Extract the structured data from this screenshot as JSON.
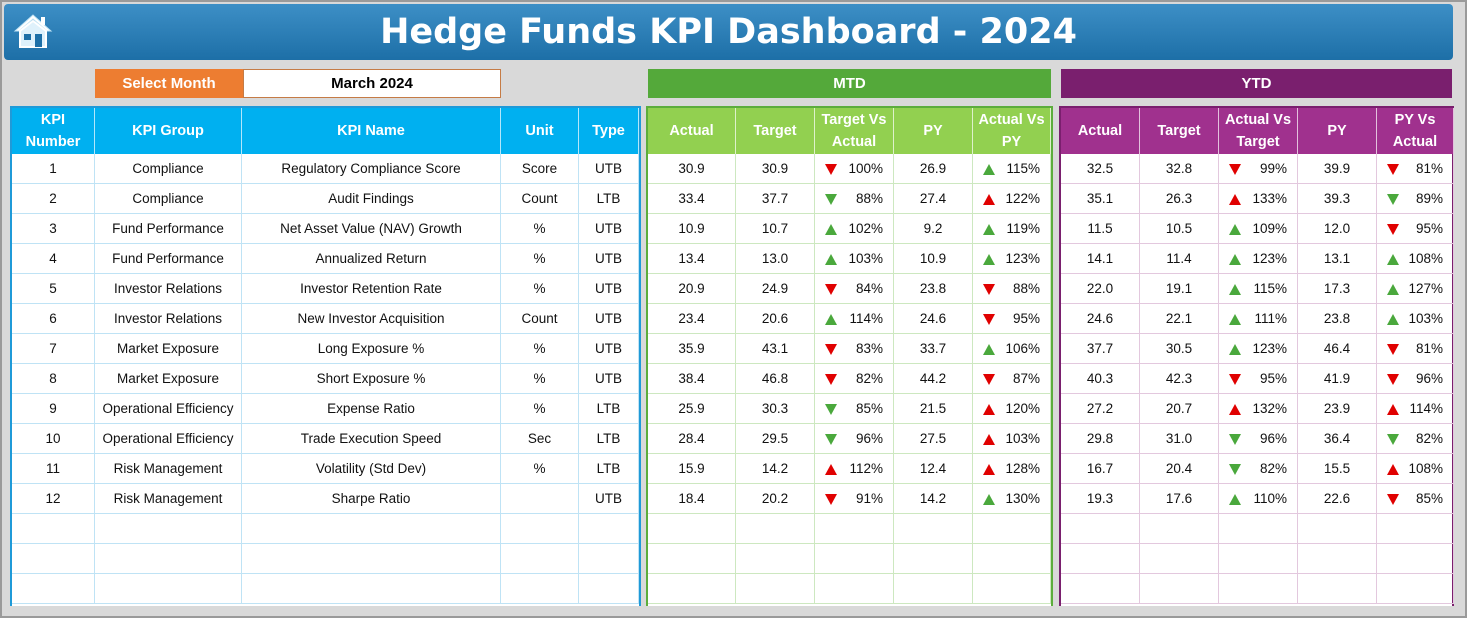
{
  "header": {
    "title": "Hedge Funds KPI Dashboard - 2024",
    "home_icon": "home-icon"
  },
  "selector": {
    "label": "Select Month",
    "value": "March 2024"
  },
  "sections": {
    "mtd": "MTD",
    "ytd": "YTD"
  },
  "colors": {
    "title_bg": "#2a7db7",
    "select_label": "#ed7d31",
    "left_header": "#00b0f0",
    "mtd_header": "#92d050",
    "mtd_bar": "#54a93a",
    "ytd_header": "#a0318e",
    "ytd_bar": "#7a1f6e",
    "arrow_up": "#4aa83c",
    "arrow_down": "#e00000"
  },
  "left_headers": [
    "KPI Number",
    "KPI Group",
    "KPI Name",
    "Unit",
    "Type"
  ],
  "mtd_headers": [
    "Actual",
    "Target",
    "Target Vs Actual",
    "PY",
    "Actual Vs PY"
  ],
  "ytd_headers": [
    "Actual",
    "Target",
    "Actual Vs Target",
    "PY",
    "PY Vs Actual"
  ],
  "rows": [
    {
      "num": "1",
      "group": "Compliance",
      "name": "Regulatory Compliance Score",
      "unit": "Score",
      "type": "UTB",
      "mtd": {
        "actual": "30.9",
        "target": "30.9",
        "tva": "100%",
        "tva_dir": "down",
        "py": "26.9",
        "avp": "115%",
        "avp_dir": "up"
      },
      "ytd": {
        "actual": "32.5",
        "target": "32.8",
        "avt": "99%",
        "avt_dir": "down",
        "py": "39.9",
        "pva": "81%",
        "pva_dir": "down"
      }
    },
    {
      "num": "2",
      "group": "Compliance",
      "name": "Audit Findings",
      "unit": "Count",
      "type": "LTB",
      "mtd": {
        "actual": "33.4",
        "target": "37.7",
        "tva": "88%",
        "tva_dir": "down-green",
        "py": "27.4",
        "avp": "122%",
        "avp_dir": "up-red"
      },
      "ytd": {
        "actual": "35.1",
        "target": "26.3",
        "avt": "133%",
        "avt_dir": "up-red",
        "py": "39.3",
        "pva": "89%",
        "pva_dir": "down-green"
      }
    },
    {
      "num": "3",
      "group": "Fund Performance",
      "name": "Net Asset Value (NAV) Growth",
      "unit": "%",
      "type": "UTB",
      "mtd": {
        "actual": "10.9",
        "target": "10.7",
        "tva": "102%",
        "tva_dir": "up",
        "py": "9.2",
        "avp": "119%",
        "avp_dir": "up"
      },
      "ytd": {
        "actual": "11.5",
        "target": "10.5",
        "avt": "109%",
        "avt_dir": "up",
        "py": "12.0",
        "pva": "95%",
        "pva_dir": "down"
      }
    },
    {
      "num": "4",
      "group": "Fund Performance",
      "name": "Annualized Return",
      "unit": "%",
      "type": "UTB",
      "mtd": {
        "actual": "13.4",
        "target": "13.0",
        "tva": "103%",
        "tva_dir": "up",
        "py": "10.9",
        "avp": "123%",
        "avp_dir": "up"
      },
      "ytd": {
        "actual": "14.1",
        "target": "11.4",
        "avt": "123%",
        "avt_dir": "up",
        "py": "13.1",
        "pva": "108%",
        "pva_dir": "up"
      }
    },
    {
      "num": "5",
      "group": "Investor Relations",
      "name": "Investor Retention Rate",
      "unit": "%",
      "type": "UTB",
      "mtd": {
        "actual": "20.9",
        "target": "24.9",
        "tva": "84%",
        "tva_dir": "down",
        "py": "23.8",
        "avp": "88%",
        "avp_dir": "down"
      },
      "ytd": {
        "actual": "22.0",
        "target": "19.1",
        "avt": "115%",
        "avt_dir": "up",
        "py": "17.3",
        "pva": "127%",
        "pva_dir": "up"
      }
    },
    {
      "num": "6",
      "group": "Investor Relations",
      "name": "New Investor Acquisition",
      "unit": "Count",
      "type": "UTB",
      "mtd": {
        "actual": "23.4",
        "target": "20.6",
        "tva": "114%",
        "tva_dir": "up",
        "py": "24.6",
        "avp": "95%",
        "avp_dir": "down"
      },
      "ytd": {
        "actual": "24.6",
        "target": "22.1",
        "avt": "111%",
        "avt_dir": "up",
        "py": "23.8",
        "pva": "103%",
        "pva_dir": "up"
      }
    },
    {
      "num": "7",
      "group": "Market Exposure",
      "name": "Long Exposure %",
      "unit": "%",
      "type": "UTB",
      "mtd": {
        "actual": "35.9",
        "target": "43.1",
        "tva": "83%",
        "tva_dir": "down",
        "py": "33.7",
        "avp": "106%",
        "avp_dir": "up"
      },
      "ytd": {
        "actual": "37.7",
        "target": "30.5",
        "avt": "123%",
        "avt_dir": "up",
        "py": "46.4",
        "pva": "81%",
        "pva_dir": "down"
      }
    },
    {
      "num": "8",
      "group": "Market Exposure",
      "name": "Short Exposure %",
      "unit": "%",
      "type": "UTB",
      "mtd": {
        "actual": "38.4",
        "target": "46.8",
        "tva": "82%",
        "tva_dir": "down",
        "py": "44.2",
        "avp": "87%",
        "avp_dir": "down"
      },
      "ytd": {
        "actual": "40.3",
        "target": "42.3",
        "avt": "95%",
        "avt_dir": "down",
        "py": "41.9",
        "pva": "96%",
        "pva_dir": "down"
      }
    },
    {
      "num": "9",
      "group": "Operational Efficiency",
      "name": "Expense Ratio",
      "unit": "%",
      "type": "LTB",
      "mtd": {
        "actual": "25.9",
        "target": "30.3",
        "tva": "85%",
        "tva_dir": "down-green",
        "py": "21.5",
        "avp": "120%",
        "avp_dir": "up-red"
      },
      "ytd": {
        "actual": "27.2",
        "target": "20.7",
        "avt": "132%",
        "avt_dir": "up-red",
        "py": "23.9",
        "pva": "114%",
        "pva_dir": "up-red"
      }
    },
    {
      "num": "10",
      "group": "Operational Efficiency",
      "name": "Trade Execution Speed",
      "unit": "Sec",
      "type": "LTB",
      "mtd": {
        "actual": "28.4",
        "target": "29.5",
        "tva": "96%",
        "tva_dir": "down-green",
        "py": "27.5",
        "avp": "103%",
        "avp_dir": "up-red"
      },
      "ytd": {
        "actual": "29.8",
        "target": "31.0",
        "avt": "96%",
        "avt_dir": "down-green",
        "py": "36.4",
        "pva": "82%",
        "pva_dir": "down-green"
      }
    },
    {
      "num": "11",
      "group": "Risk Management",
      "name": "Volatility (Std Dev)",
      "unit": "%",
      "type": "LTB",
      "mtd": {
        "actual": "15.9",
        "target": "14.2",
        "tva": "112%",
        "tva_dir": "up-red",
        "py": "12.4",
        "avp": "128%",
        "avp_dir": "up-red"
      },
      "ytd": {
        "actual": "16.7",
        "target": "20.4",
        "avt": "82%",
        "avt_dir": "down-green",
        "py": "15.5",
        "pva": "108%",
        "pva_dir": "up-red"
      }
    },
    {
      "num": "12",
      "group": "Risk Management",
      "name": "Sharpe Ratio",
      "unit": "",
      "type": "UTB",
      "mtd": {
        "actual": "18.4",
        "target": "20.2",
        "tva": "91%",
        "tva_dir": "down",
        "py": "14.2",
        "avp": "130%",
        "avp_dir": "up"
      },
      "ytd": {
        "actual": "19.3",
        "target": "17.6",
        "avt": "110%",
        "avt_dir": "up",
        "py": "22.6",
        "pva": "85%",
        "pva_dir": "down"
      }
    }
  ]
}
